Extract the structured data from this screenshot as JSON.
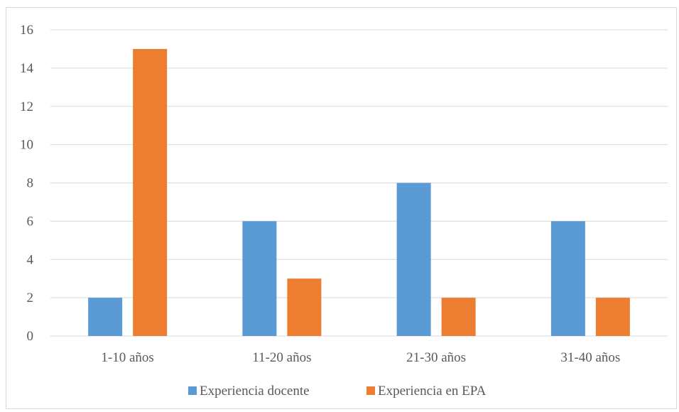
{
  "chart_data": {
    "type": "bar",
    "categories": [
      "1-10 años",
      "11-20 años",
      "21-30 años",
      "31-40 años"
    ],
    "series": [
      {
        "name": "Experiencia docente",
        "values": [
          2,
          6,
          8,
          6
        ],
        "color": "#5b9bd5"
      },
      {
        "name": "Experiencia en EPA",
        "values": [
          15,
          3,
          2,
          2
        ],
        "color": "#ed7d31"
      }
    ],
    "ylim": [
      0,
      16
    ],
    "yticks": [
      0,
      2,
      4,
      6,
      8,
      10,
      12,
      14,
      16
    ],
    "grid": true,
    "legend_position": "bottom",
    "title": "",
    "xlabel": "",
    "ylabel": ""
  }
}
